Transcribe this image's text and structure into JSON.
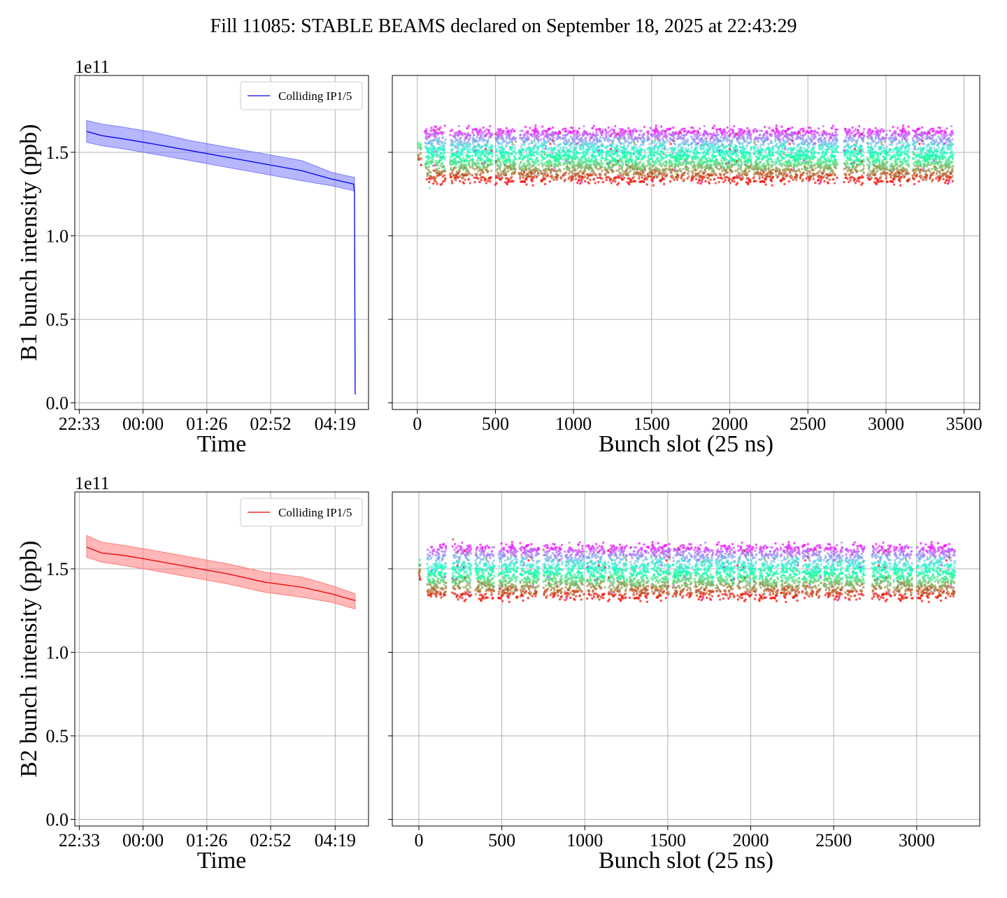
{
  "title": "Fill 11085: STABLE BEAMS declared on September 18, 2025 at 22:43:29",
  "chart_data": [
    {
      "id": "b1-time",
      "type": "line",
      "xlabel": "Time",
      "ylabel": "B1 bunch intensity (ppb)",
      "offset_text": "1e11",
      "scale": 100000000000.0,
      "x_ticks": [
        {
          "t": 0,
          "label": "22:33"
        },
        {
          "t": 86,
          "label": "00:00"
        },
        {
          "t": 172,
          "label": "01:26"
        },
        {
          "t": 258,
          "label": "02:52"
        },
        {
          "t": 345,
          "label": "04:19"
        }
      ],
      "xlim": [
        -6,
        390
      ],
      "y_ticks": [
        0.0,
        0.5,
        1.0,
        1.5
      ],
      "y_tick_labels": [
        "0.0",
        "0.5",
        "1.0",
        "1.5"
      ],
      "ylim": [
        -0.04,
        1.96
      ],
      "grid": true,
      "legend": {
        "position": "top-right",
        "entries": [
          "Colliding IP1/5"
        ]
      },
      "color": "#0000ee",
      "band_color": "#7b7bff",
      "series": [
        {
          "name": "Colliding IP1/5",
          "x": [
            10,
            30,
            60,
            100,
            150,
            200,
            250,
            300,
            340,
            370,
            371,
            372
          ],
          "y": [
            1.625,
            1.6,
            1.58,
            1.55,
            1.51,
            1.47,
            1.43,
            1.39,
            1.34,
            1.31,
            1.27,
            0.05
          ],
          "band_low": [
            1.56,
            1.54,
            1.52,
            1.49,
            1.45,
            1.41,
            1.37,
            1.33,
            1.3,
            1.27,
            1.26,
            0.05
          ],
          "band_high": [
            1.69,
            1.67,
            1.65,
            1.62,
            1.57,
            1.53,
            1.49,
            1.45,
            1.38,
            1.35,
            1.35,
            0.05
          ]
        }
      ]
    },
    {
      "id": "b1-slot",
      "type": "scatter",
      "xlabel": "Bunch slot (25 ns)",
      "ylabel": "",
      "x_ticks": [
        0,
        500,
        1000,
        1500,
        2000,
        2500,
        3000,
        3500
      ],
      "x_tick_labels": [
        "0",
        "500",
        "1000",
        "1500",
        "2000",
        "2500",
        "3000",
        "3500"
      ],
      "xlim": [
        -160,
        3600
      ],
      "y_ticks": [
        0.0,
        0.5,
        1.0,
        1.5
      ],
      "ylim": [
        -0.04,
        1.96
      ],
      "grid": true,
      "colormap": "rainbow",
      "train_starts": [
        50,
        210,
        350,
        500,
        650,
        790,
        930,
        1060,
        1200,
        1330,
        1470,
        1610,
        1750,
        1880,
        2010,
        2150,
        2290,
        2420,
        2560,
        2730,
        2880,
        3020,
        3170,
        3300
      ],
      "train_length": 130,
      "bunch_value_range": [
        1.2,
        1.85
      ],
      "pilot_slots": [
        5,
        20
      ],
      "last_slot": 3430
    },
    {
      "id": "b2-time",
      "type": "line",
      "xlabel": "Time",
      "ylabel": "B2 bunch intensity (ppb)",
      "offset_text": "1e11",
      "scale": 100000000000.0,
      "x_ticks": [
        {
          "t": 0,
          "label": "22:33"
        },
        {
          "t": 86,
          "label": "00:00"
        },
        {
          "t": 172,
          "label": "01:26"
        },
        {
          "t": 258,
          "label": "02:52"
        },
        {
          "t": 345,
          "label": "04:19"
        }
      ],
      "xlim": [
        -6,
        390
      ],
      "y_ticks": [
        0.0,
        0.5,
        1.0,
        1.5
      ],
      "y_tick_labels": [
        "0.0",
        "0.5",
        "1.0",
        "1.5"
      ],
      "ylim": [
        -0.04,
        1.96
      ],
      "grid": true,
      "legend": {
        "position": "top-right",
        "entries": [
          "Colliding IP1/5"
        ]
      },
      "color": "#ee0000",
      "band_color": "#ff7b7b",
      "series": [
        {
          "name": "Colliding IP1/5",
          "x": [
            10,
            30,
            60,
            100,
            150,
            200,
            250,
            300,
            340,
            372
          ],
          "y": [
            1.63,
            1.595,
            1.58,
            1.55,
            1.51,
            1.47,
            1.42,
            1.39,
            1.35,
            1.31
          ],
          "band_low": [
            1.57,
            1.54,
            1.52,
            1.49,
            1.45,
            1.41,
            1.36,
            1.33,
            1.3,
            1.26
          ],
          "band_high": [
            1.7,
            1.66,
            1.64,
            1.61,
            1.57,
            1.53,
            1.48,
            1.45,
            1.4,
            1.35
          ]
        }
      ]
    },
    {
      "id": "b2-slot",
      "type": "scatter",
      "xlabel": "Bunch slot (25 ns)",
      "ylabel": "",
      "x_ticks": [
        0,
        500,
        1000,
        1500,
        2000,
        2500,
        3000
      ],
      "x_tick_labels": [
        "0",
        "500",
        "1000",
        "1500",
        "2000",
        "2500",
        "3000"
      ],
      "xlim": [
        -160,
        3380
      ],
      "y_ticks": [
        0.0,
        0.5,
        1.0,
        1.5
      ],
      "ylim": [
        -0.04,
        1.96
      ],
      "grid": true,
      "colormap": "rainbow",
      "train_starts": [
        50,
        200,
        340,
        480,
        610,
        750,
        880,
        1010,
        1140,
        1270,
        1400,
        1530,
        1660,
        1790,
        1920,
        2050,
        2180,
        2310,
        2440,
        2570,
        2730,
        2860,
        3000,
        3120
      ],
      "train_length": 115,
      "bunch_value_range": [
        1.17,
        1.87
      ],
      "pilot_slots": [
        0,
        3
      ],
      "last_slot": 3230
    }
  ]
}
